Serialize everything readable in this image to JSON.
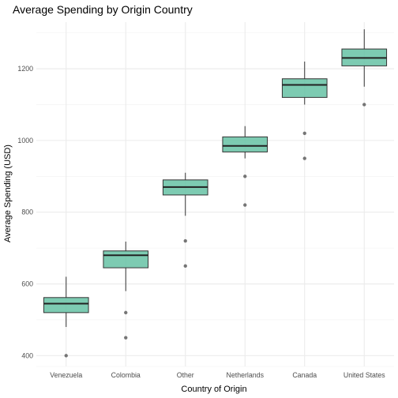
{
  "chart_data": {
    "type": "boxplot",
    "title": "Average Spending by Origin Country",
    "xlabel": "Country of Origin",
    "ylabel": "Average Spending (USD)",
    "ylim": [
      370,
      1330
    ],
    "yticks": [
      400,
      600,
      800,
      1000,
      1200
    ],
    "grid": true,
    "legend": "none",
    "box_color": "#66c2a5",
    "categories": [
      "Venezuela",
      "Colombia",
      "Other",
      "Netherlands",
      "Canada",
      "United States"
    ],
    "boxes": [
      {
        "category": "Venezuela",
        "whisker_low": 480,
        "q1": 520,
        "median": 545,
        "q3": 562,
        "whisker_high": 620,
        "outliers": [
          400
        ]
      },
      {
        "category": "Colombia",
        "whisker_low": 580,
        "q1": 645,
        "median": 680,
        "q3": 692,
        "whisker_high": 718,
        "outliers": [
          520,
          450
        ]
      },
      {
        "category": "Other",
        "whisker_low": 790,
        "q1": 848,
        "median": 870,
        "q3": 890,
        "whisker_high": 910,
        "outliers": [
          720,
          650
        ]
      },
      {
        "category": "Netherlands",
        "whisker_low": 950,
        "q1": 968,
        "median": 985,
        "q3": 1010,
        "whisker_high": 1040,
        "outliers": [
          900,
          820
        ]
      },
      {
        "category": "Canada",
        "whisker_low": 1100,
        "q1": 1120,
        "median": 1155,
        "q3": 1172,
        "whisker_high": 1220,
        "outliers": [
          1020,
          950
        ]
      },
      {
        "category": "United States",
        "whisker_low": 1150,
        "q1": 1208,
        "median": 1230,
        "q3": 1255,
        "whisker_high": 1310,
        "outliers": [
          1100
        ]
      }
    ]
  }
}
